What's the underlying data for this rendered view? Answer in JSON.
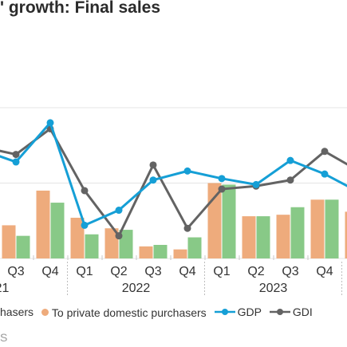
{
  "page_title": "' growth: Final sales",
  "legend": {
    "item1_label": "hasers",
    "item2_label": "To private domestic purchasers",
    "item3_label": "GDP",
    "item4_label": "GDI"
  },
  "footer_text": "S",
  "colors": {
    "bar_orange": "#eeab7c",
    "bar_green": "#88c987",
    "gdp_line": "#159fd6",
    "gdi_line": "#636363"
  },
  "chart_data": {
    "type": "bar",
    "title": "' growth: Final sales",
    "categories": [
      "Q3",
      "Q4",
      "Q1",
      "Q2",
      "Q3",
      "Q4",
      "Q1",
      "Q2",
      "Q3",
      "Q4"
    ],
    "year_labels": [
      "21",
      "2022",
      "2023"
    ],
    "series": [
      {
        "name": "hasers",
        "kind": "bar",
        "values": [
          2.2,
          4.5,
          2.7,
          2.0,
          0.8,
          0.6,
          5.0,
          2.8,
          2.9,
          3.9
        ]
      },
      {
        "name": "To private domestic purchasers",
        "kind": "bar",
        "values": [
          1.5,
          3.7,
          1.6,
          1.9,
          0.9,
          1.4,
          4.9,
          2.8,
          3.4,
          3.9
        ]
      },
      {
        "name": "GDP",
        "kind": "line",
        "values": [
          6.4,
          9.0,
          2.2,
          3.2,
          5.2,
          5.8,
          5.3,
          4.9,
          6.5,
          5.6
        ]
      },
      {
        "name": "GDI",
        "kind": "line",
        "values": [
          6.9,
          8.6,
          4.5,
          1.5,
          6.2,
          2.0,
          4.6,
          4.8,
          5.2,
          7.1
        ]
      }
    ],
    "partial_left": {
      "bars": [],
      "gdp": 7.2,
      "gdi": 7.4
    },
    "partial_right": {
      "bars": [
        3.1,
        null
      ],
      "gdp": 4.4,
      "gdi": 5.8
    },
    "ylim": [
      0,
      11
    ],
    "grid": true,
    "legend_position": "bottom"
  }
}
